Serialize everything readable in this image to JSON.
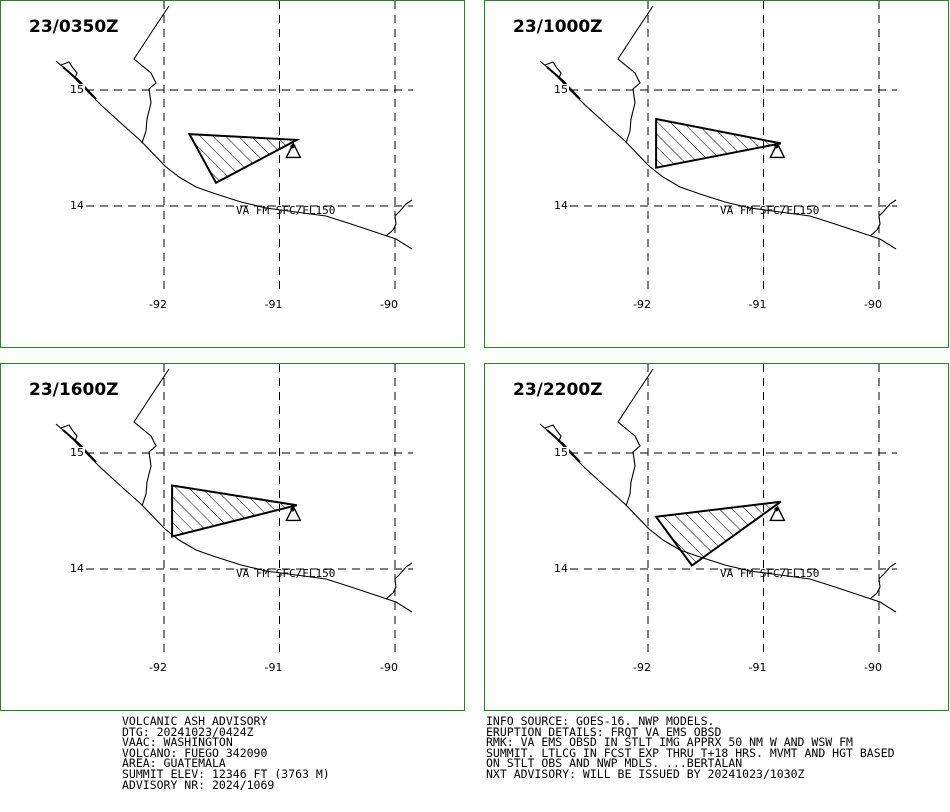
{
  "panels": [
    {
      "time": "23/0350Z",
      "ash": [
        [
          -91.78,
          14.62
        ],
        [
          -90.85,
          14.57
        ],
        [
          -91.55,
          14.2
        ]
      ]
    },
    {
      "time": "23/1000Z",
      "ash": [
        [
          -91.93,
          14.75
        ],
        [
          -90.85,
          14.54
        ],
        [
          -91.93,
          14.33
        ]
      ]
    },
    {
      "time": "23/1600Z",
      "ash": [
        [
          -91.93,
          14.72
        ],
        [
          -90.85,
          14.55
        ],
        [
          -91.93,
          14.28
        ]
      ]
    },
    {
      "time": "23/2200Z",
      "ash": [
        [
          -91.93,
          14.45
        ],
        [
          -90.85,
          14.58
        ],
        [
          -91.62,
          14.03
        ]
      ]
    }
  ],
  "map": {
    "lon_ticks": [
      "-92",
      "-91",
      "-90"
    ],
    "lat_ticks": [
      "15",
      "14"
    ],
    "va_label": "VA FM SFC/FL150",
    "volcano_icon": "triangle-volcano-icon",
    "grid_style": "dashed",
    "border_color": "#1e8a1e"
  },
  "advisory": {
    "left_lines": [
      "VOLCANIC ASH ADVISORY",
      "DTG: 20241023/0424Z",
      "VAAC: WASHINGTON",
      "VOLCANO: FUEGO 342090",
      "AREA: GUATEMALA",
      "SUMMIT ELEV: 12346 FT (3763 M)",
      "ADVISORY NR: 2024/1069"
    ],
    "right_lines": [
      "INFO SOURCE: GOES-16. NWP MODELS.",
      "ERUPTION DETAILS: FRQT VA EMS OBSD",
      "RMK: VA EMS OBSD IN STLT IMG APPRX 50 NM W AND WSW FM",
      "SUMMIT. LTLCG IN FCST EXP THRU T+18 HRS. MVMT AND HGT BASED",
      "ON STLT OBS AND NWP MDLS. ...BERTALAN",
      "NXT ADVISORY: WILL BE ISSUED BY 20241023/1030Z"
    ]
  }
}
